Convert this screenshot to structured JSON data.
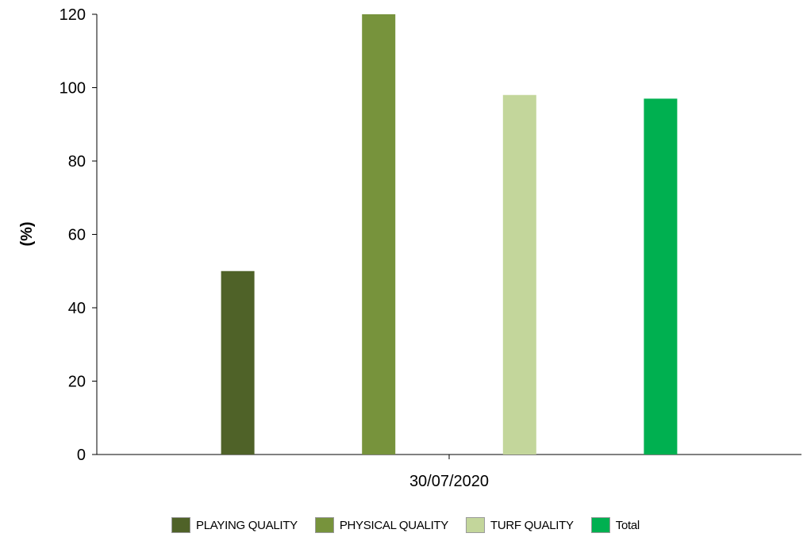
{
  "chart_data": {
    "type": "bar",
    "categories": [
      "30/07/2020"
    ],
    "series": [
      {
        "name": "PLAYING QUALITY",
        "values": [
          50
        ],
        "color": "#4f6228"
      },
      {
        "name": "PHYSICAL QUALITY",
        "values": [
          120
        ],
        "color": "#77933c"
      },
      {
        "name": "TURF QUALITY",
        "values": [
          98
        ],
        "color": "#c3d69b"
      },
      {
        "name": "Total",
        "values": [
          97
        ],
        "color": "#00b050"
      }
    ],
    "title": "",
    "xlabel": "",
    "ylabel": "(%)",
    "ylim": [
      0,
      120
    ],
    "yticks": [
      "0",
      "20",
      "40",
      "60",
      "80",
      "100",
      "120"
    ],
    "grid": false,
    "legend_position": "bottom"
  }
}
